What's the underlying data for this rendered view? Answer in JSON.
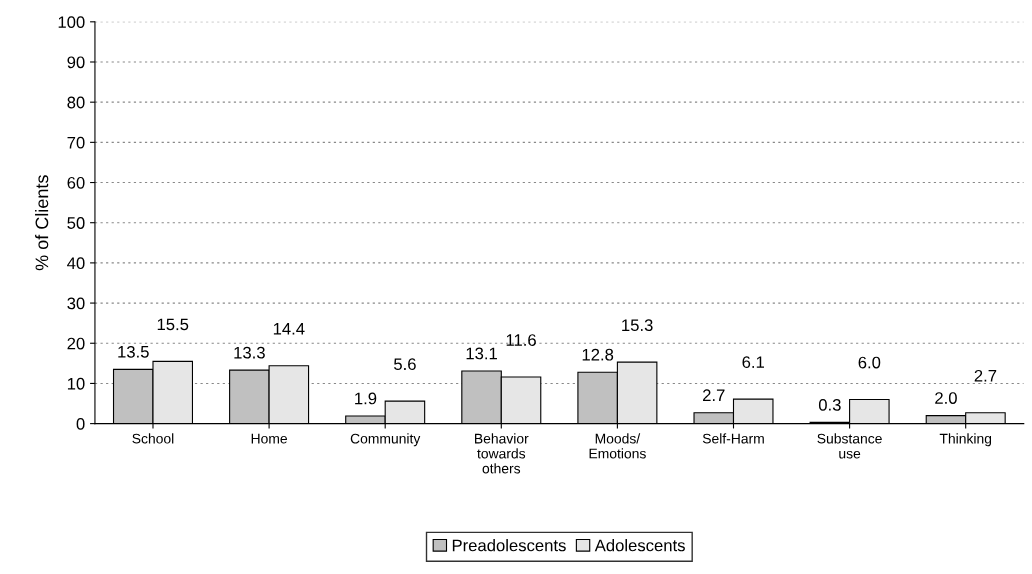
{
  "chart_data": {
    "type": "bar",
    "ylabel": "% of Clients",
    "categories": [
      "School",
      "Home",
      "Community",
      "Behavior\ntowards\nothers",
      "Moods/\nEmotions",
      "Self-Harm",
      "Substance\nuse",
      "Thinking"
    ],
    "series": [
      {
        "name": "Preadolescents",
        "color": "#c0c0c0",
        "values": [
          13.5,
          13.3,
          1.9,
          13.1,
          12.8,
          2.7,
          0.3,
          2.0
        ],
        "value_labels": [
          "13.5",
          "13.3",
          "1.9",
          "13.1",
          "12.8",
          "2.7",
          "0.3",
          "2.0"
        ]
      },
      {
        "name": "Adolescents",
        "color": "#e6e6e6",
        "values": [
          15.5,
          14.4,
          5.6,
          11.6,
          15.3,
          6.1,
          6.0,
          2.7
        ],
        "value_labels": [
          "15.5",
          "14.4",
          "5.6",
          "11.6",
          "15.3",
          "6.1",
          "6.0",
          "2.7"
        ]
      }
    ],
    "ylim": [
      0,
      100
    ],
    "yticks": [
      0,
      10,
      20,
      30,
      40,
      50,
      60,
      70,
      80,
      90,
      100
    ],
    "grid": "y",
    "legend": "bottom"
  }
}
